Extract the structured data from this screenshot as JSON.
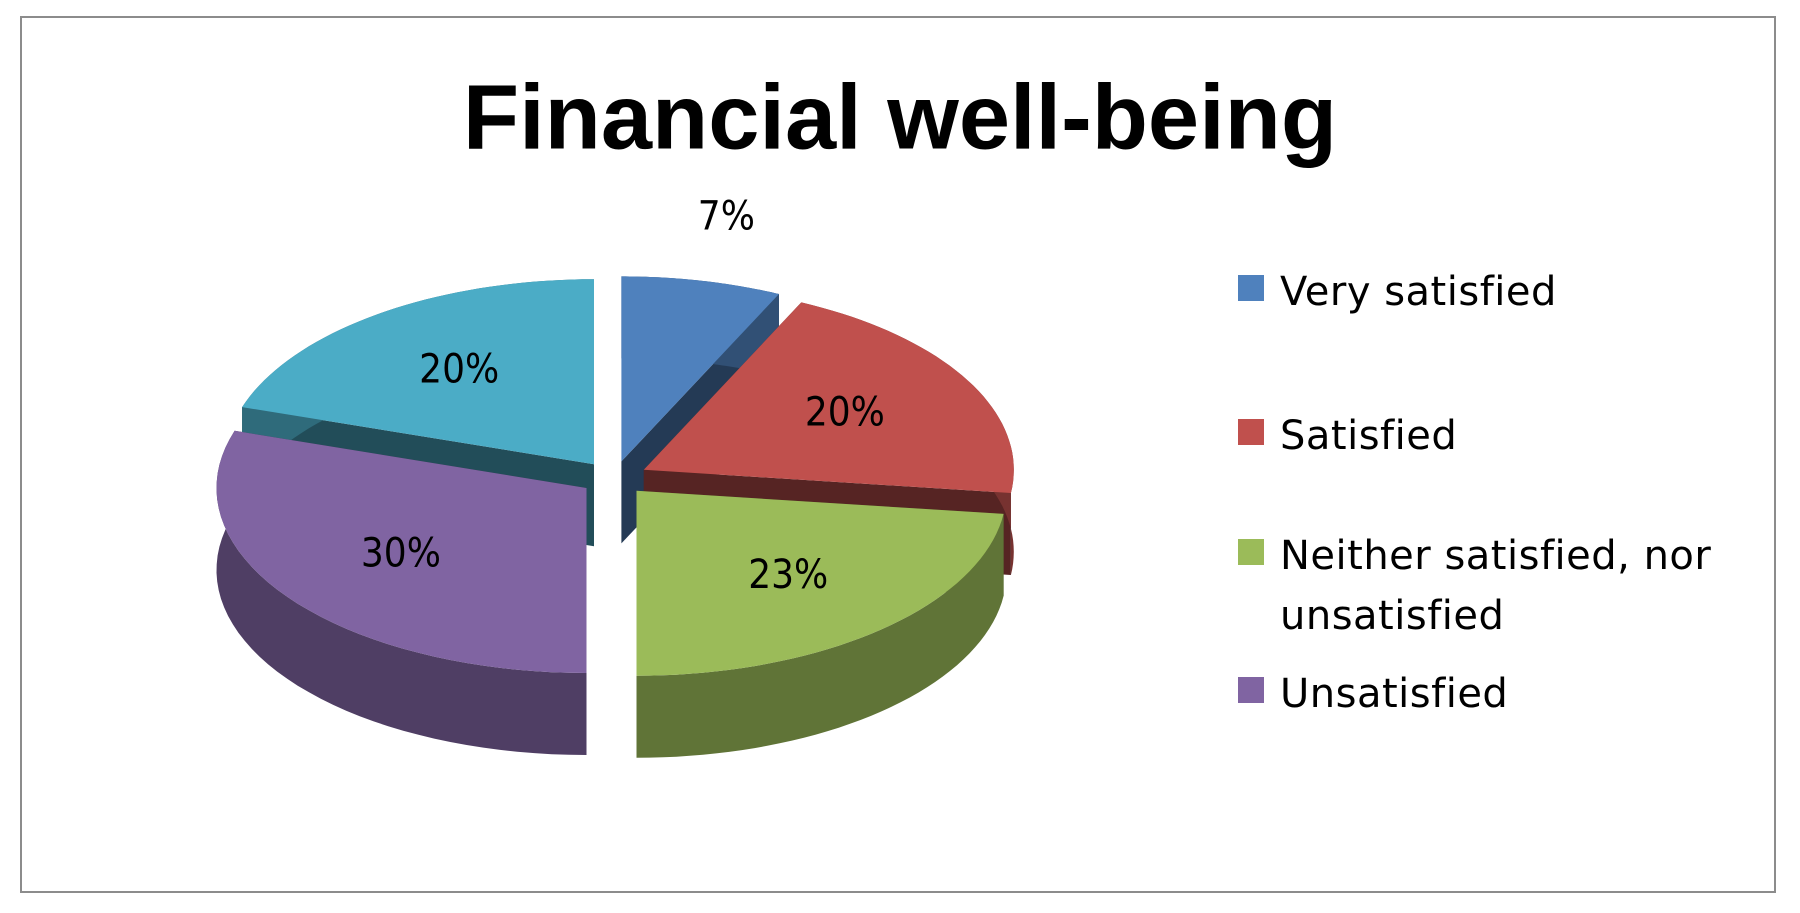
{
  "chart_data": {
    "type": "pie",
    "title": "Financial well-being",
    "categories": [
      "Very satisfied",
      "Satisfied",
      "Neither satisfied, nor unsatisfied",
      "Unsatisfied",
      null
    ],
    "values": [
      7,
      20,
      23,
      30,
      20
    ],
    "value_labels": [
      "7%",
      "20%",
      "23%",
      "30%",
      "20%"
    ],
    "colors": [
      "#4f81bd",
      "#c0504d",
      "#9bbb59",
      "#8064a2",
      "#4bacc6"
    ],
    "legend": "right"
  }
}
